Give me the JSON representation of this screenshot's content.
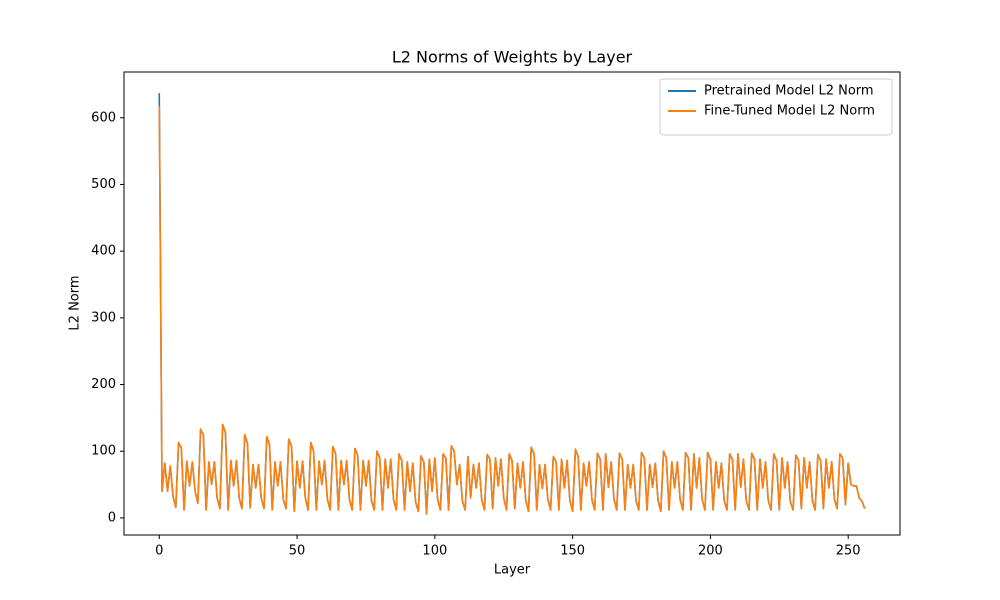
{
  "chart_data": {
    "type": "line",
    "title": "L2 Norms of Weights by Layer",
    "x_label": "Layer",
    "y_label": "L2 Norm",
    "xlim": [
      -12.8,
      268.8
    ],
    "ylim": [
      -25.6,
      668.6
    ],
    "xticks": [
      0,
      50,
      100,
      150,
      200,
      250
    ],
    "yticks": [
      0,
      100,
      200,
      300,
      400,
      500,
      600
    ],
    "grid": false,
    "legend": "upper right",
    "x": [
      0,
      1,
      2,
      3,
      4,
      5,
      6,
      7,
      8,
      9,
      10,
      11,
      12,
      13,
      14,
      15,
      16,
      17,
      18,
      19,
      20,
      21,
      22,
      23,
      24,
      25,
      26,
      27,
      28,
      29,
      30,
      31,
      32,
      33,
      34,
      35,
      36,
      37,
      38,
      39,
      40,
      41,
      42,
      43,
      44,
      45,
      46,
      47,
      48,
      49,
      50,
      51,
      52,
      53,
      54,
      55,
      56,
      57,
      58,
      59,
      60,
      61,
      62,
      63,
      64,
      65,
      66,
      67,
      68,
      69,
      70,
      71,
      72,
      73,
      74,
      75,
      76,
      77,
      78,
      79,
      80,
      81,
      82,
      83,
      84,
      85,
      86,
      87,
      88,
      89,
      90,
      91,
      92,
      93,
      94,
      95,
      96,
      97,
      98,
      99,
      100,
      101,
      102,
      103,
      104,
      105,
      106,
      107,
      108,
      109,
      110,
      111,
      112,
      113,
      114,
      115,
      116,
      117,
      118,
      119,
      120,
      121,
      122,
      123,
      124,
      125,
      126,
      127,
      128,
      129,
      130,
      131,
      132,
      133,
      134,
      135,
      136,
      137,
      138,
      139,
      140,
      141,
      142,
      143,
      144,
      145,
      146,
      147,
      148,
      149,
      150,
      151,
      152,
      153,
      154,
      155,
      156,
      157,
      158,
      159,
      160,
      161,
      162,
      163,
      164,
      165,
      166,
      167,
      168,
      169,
      170,
      171,
      172,
      173,
      174,
      175,
      176,
      177,
      178,
      179,
      180,
      181,
      182,
      183,
      184,
      185,
      186,
      187,
      188,
      189,
      190,
      191,
      192,
      193,
      194,
      195,
      196,
      197,
      198,
      199,
      200,
      201,
      202,
      203,
      204,
      205,
      206,
      207,
      208,
      209,
      210,
      211,
      212,
      213,
      214,
      215,
      216,
      217,
      218,
      219,
      220,
      221,
      222,
      223,
      224,
      225,
      226,
      227,
      228,
      229,
      230,
      231,
      232,
      233,
      234,
      235,
      236,
      237,
      238,
      239,
      240,
      241,
      242,
      243,
      244,
      245,
      246,
      247,
      248,
      249,
      250,
      251,
      252,
      253,
      254,
      255,
      256
    ],
    "series": [
      {
        "name": "Pretrained Model L2 Norm",
        "color": "#1f77b4",
        "values": [
          637,
          40,
          82,
          40,
          78,
          32,
          16,
          113,
          105,
          12,
          85,
          48,
          84,
          40,
          22,
          133,
          125,
          12,
          84,
          50,
          84,
          30,
          14,
          140,
          128,
          12,
          86,
          48,
          86,
          30,
          14,
          125,
          112,
          15,
          80,
          45,
          80,
          30,
          14,
          122,
          110,
          12,
          84,
          48,
          84,
          28,
          14,
          118,
          108,
          10,
          85,
          45,
          85,
          30,
          12,
          113,
          100,
          12,
          85,
          50,
          86,
          28,
          12,
          107,
          96,
          12,
          86,
          50,
          86,
          28,
          12,
          104,
          94,
          12,
          86,
          48,
          86,
          26,
          12,
          100,
          90,
          12,
          88,
          45,
          88,
          28,
          12,
          96,
          86,
          12,
          84,
          40,
          82,
          24,
          10,
          93,
          84,
          6,
          88,
          40,
          90,
          28,
          12,
          96,
          90,
          12,
          108,
          100,
          50,
          80,
          25,
          12,
          92,
          30,
          80,
          45,
          82,
          28,
          12,
          95,
          88,
          14,
          90,
          48,
          88,
          30,
          12,
          96,
          86,
          14,
          82,
          45,
          84,
          26,
          10,
          106,
          96,
          12,
          80,
          44,
          80,
          28,
          12,
          92,
          84,
          12,
          88,
          45,
          86,
          26,
          10,
          103,
          92,
          12,
          82,
          48,
          84,
          28,
          12,
          97,
          88,
          12,
          96,
          46,
          84,
          28,
          12,
          97,
          88,
          12,
          80,
          45,
          80,
          26,
          12,
          98,
          90,
          12,
          80,
          46,
          82,
          26,
          10,
          100,
          90,
          12,
          84,
          45,
          84,
          28,
          12,
          98,
          90,
          12,
          96,
          45,
          90,
          28,
          12,
          98,
          88,
          12,
          84,
          45,
          82,
          26,
          12,
          96,
          88,
          12,
          96,
          46,
          88,
          26,
          12,
          97,
          88,
          12,
          88,
          45,
          84,
          26,
          12,
          96,
          86,
          12,
          90,
          45,
          84,
          24,
          12,
          94,
          86,
          14,
          90,
          45,
          84,
          26,
          12,
          95,
          86,
          14,
          88,
          45,
          84,
          28,
          14,
          96,
          90,
          20,
          82,
          50,
          48,
          48,
          30,
          25,
          14
        ]
      },
      {
        "name": "Fine-Tuned Model L2 Norm",
        "color": "#ff7f0e",
        "values": [
          617,
          40,
          82,
          40,
          78,
          32,
          16,
          113,
          105,
          12,
          85,
          48,
          84,
          40,
          22,
          133,
          125,
          12,
          84,
          50,
          84,
          30,
          14,
          140,
          128,
          12,
          86,
          48,
          86,
          30,
          14,
          125,
          112,
          15,
          80,
          45,
          80,
          30,
          14,
          122,
          110,
          12,
          84,
          48,
          84,
          28,
          14,
          118,
          108,
          10,
          85,
          45,
          85,
          30,
          12,
          113,
          100,
          12,
          85,
          50,
          86,
          28,
          12,
          107,
          96,
          12,
          86,
          50,
          86,
          28,
          12,
          104,
          94,
          12,
          86,
          48,
          86,
          26,
          12,
          100,
          90,
          12,
          88,
          45,
          88,
          28,
          12,
          96,
          86,
          12,
          84,
          40,
          82,
          24,
          10,
          93,
          84,
          6,
          88,
          40,
          90,
          28,
          12,
          96,
          90,
          12,
          108,
          100,
          50,
          80,
          25,
          12,
          92,
          30,
          80,
          45,
          82,
          28,
          12,
          95,
          88,
          14,
          90,
          48,
          88,
          30,
          12,
          96,
          86,
          14,
          82,
          45,
          84,
          26,
          10,
          106,
          96,
          12,
          80,
          44,
          80,
          28,
          12,
          92,
          84,
          12,
          88,
          45,
          86,
          26,
          10,
          103,
          92,
          12,
          82,
          48,
          84,
          28,
          12,
          97,
          88,
          12,
          96,
          46,
          84,
          28,
          12,
          97,
          88,
          12,
          80,
          45,
          80,
          26,
          12,
          98,
          90,
          12,
          80,
          46,
          82,
          26,
          10,
          100,
          90,
          12,
          84,
          45,
          84,
          28,
          12,
          98,
          90,
          12,
          96,
          45,
          90,
          28,
          12,
          98,
          88,
          12,
          84,
          45,
          82,
          26,
          12,
          96,
          88,
          12,
          96,
          46,
          88,
          26,
          12,
          97,
          88,
          12,
          88,
          45,
          84,
          26,
          12,
          96,
          86,
          12,
          90,
          45,
          84,
          24,
          12,
          94,
          86,
          14,
          90,
          45,
          84,
          26,
          12,
          95,
          86,
          14,
          88,
          45,
          84,
          28,
          14,
          96,
          90,
          20,
          82,
          50,
          48,
          48,
          30,
          25,
          14
        ]
      }
    ]
  }
}
